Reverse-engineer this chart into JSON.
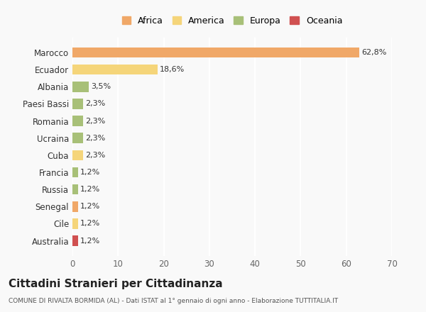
{
  "categories": [
    "Marocco",
    "Ecuador",
    "Albania",
    "Paesi Bassi",
    "Romania",
    "Ucraina",
    "Cuba",
    "Francia",
    "Russia",
    "Senegal",
    "Cile",
    "Australia"
  ],
  "values": [
    62.8,
    18.6,
    3.5,
    2.3,
    2.3,
    2.3,
    2.3,
    1.2,
    1.2,
    1.2,
    1.2,
    1.2
  ],
  "labels": [
    "62,8%",
    "18,6%",
    "3,5%",
    "2,3%",
    "2,3%",
    "2,3%",
    "2,3%",
    "1,2%",
    "1,2%",
    "1,2%",
    "1,2%",
    "1,2%"
  ],
  "colors": [
    "#F0A868",
    "#F5D57A",
    "#A8C078",
    "#A8C078",
    "#A8C078",
    "#A8C078",
    "#F5D57A",
    "#A8C078",
    "#A8C078",
    "#F0A868",
    "#F5D57A",
    "#D05050"
  ],
  "legend_labels": [
    "Africa",
    "America",
    "Europa",
    "Oceania"
  ],
  "legend_colors": [
    "#F0A868",
    "#F5D57A",
    "#A8C078",
    "#D05050"
  ],
  "title": "Cittadini Stranieri per Cittadinanza",
  "subtitle": "COMUNE DI RIVALTA BORMIDA (AL) - Dati ISTAT al 1° gennaio di ogni anno - Elaborazione TUTTITALIA.IT",
  "xlim": [
    0,
    70
  ],
  "xticks": [
    0,
    10,
    20,
    30,
    40,
    50,
    60,
    70
  ],
  "background_color": "#f9f9f9",
  "grid_color": "#ffffff"
}
